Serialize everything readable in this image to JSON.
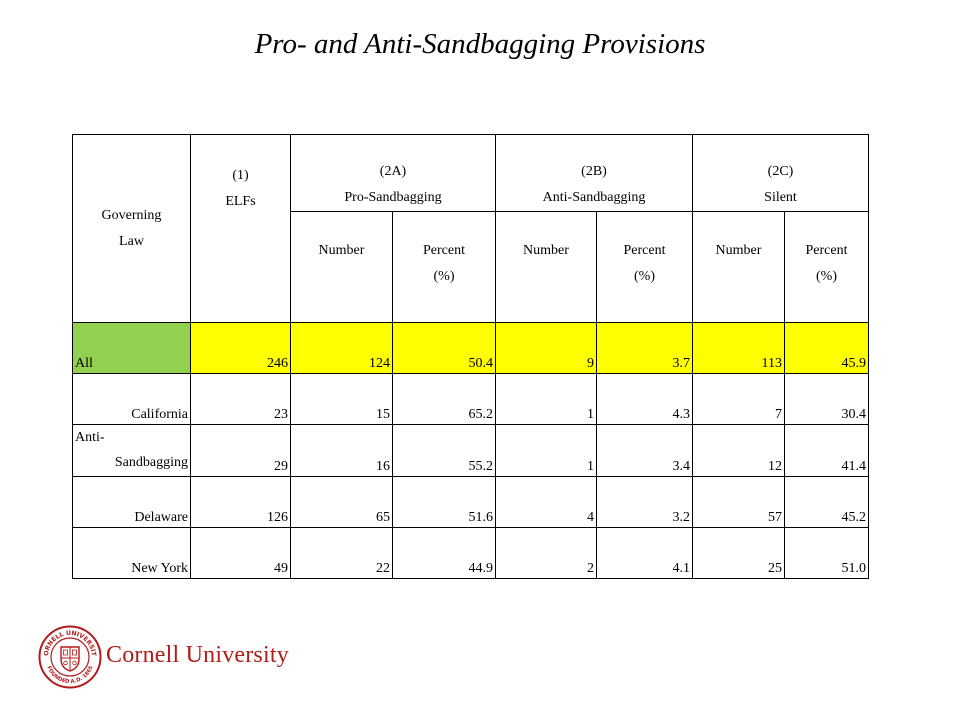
{
  "title": "Pro- and Anti-Sandbagging Provisions",
  "colors": {
    "highlight": "#ffff00",
    "all_label": "#92d050",
    "brand": "#b31b1b"
  },
  "table": {
    "governing_law_header": [
      "Governing",
      "Law"
    ],
    "elfs_header": [
      "(1)",
      "ELFs"
    ],
    "groups": [
      {
        "code": "(2A)",
        "name": "Pro-Sandbagging"
      },
      {
        "code": "(2B)",
        "name": "Anti-Sandbagging"
      },
      {
        "code": "(2C)",
        "name": "Silent"
      }
    ],
    "sub_number": "Number",
    "sub_percent": [
      "Percent",
      "(%)"
    ],
    "rows": [
      {
        "label": [
          "All"
        ],
        "elfs": "246",
        "pro_n": "124",
        "pro_p": "50.4",
        "anti_n": "9",
        "anti_p": "3.7",
        "silent_n": "113",
        "silent_p": "45.9"
      },
      {
        "label": [
          "California"
        ],
        "elfs": "23",
        "pro_n": "15",
        "pro_p": "65.2",
        "anti_n": "1",
        "anti_p": "4.3",
        "silent_n": "7",
        "silent_p": "30.4"
      },
      {
        "label": [
          "Anti-",
          "Sandbagging"
        ],
        "elfs": "29",
        "pro_n": "16",
        "pro_p": "55.2",
        "anti_n": "1",
        "anti_p": "3.4",
        "silent_n": "12",
        "silent_p": "41.4"
      },
      {
        "label": [
          "Delaware"
        ],
        "elfs": "126",
        "pro_n": "65",
        "pro_p": "51.6",
        "anti_n": "4",
        "anti_p": "3.2",
        "silent_n": "57",
        "silent_p": "45.2"
      },
      {
        "label": [
          "New York"
        ],
        "elfs": "49",
        "pro_n": "22",
        "pro_p": "44.9",
        "anti_n": "2",
        "anti_p": "4.1",
        "silent_n": "25",
        "silent_p": "51.0"
      }
    ]
  },
  "logo": {
    "name": "Cornell University",
    "seal_text": "CORNELL UNIVERSITY FOUNDED A.D. 1865"
  }
}
